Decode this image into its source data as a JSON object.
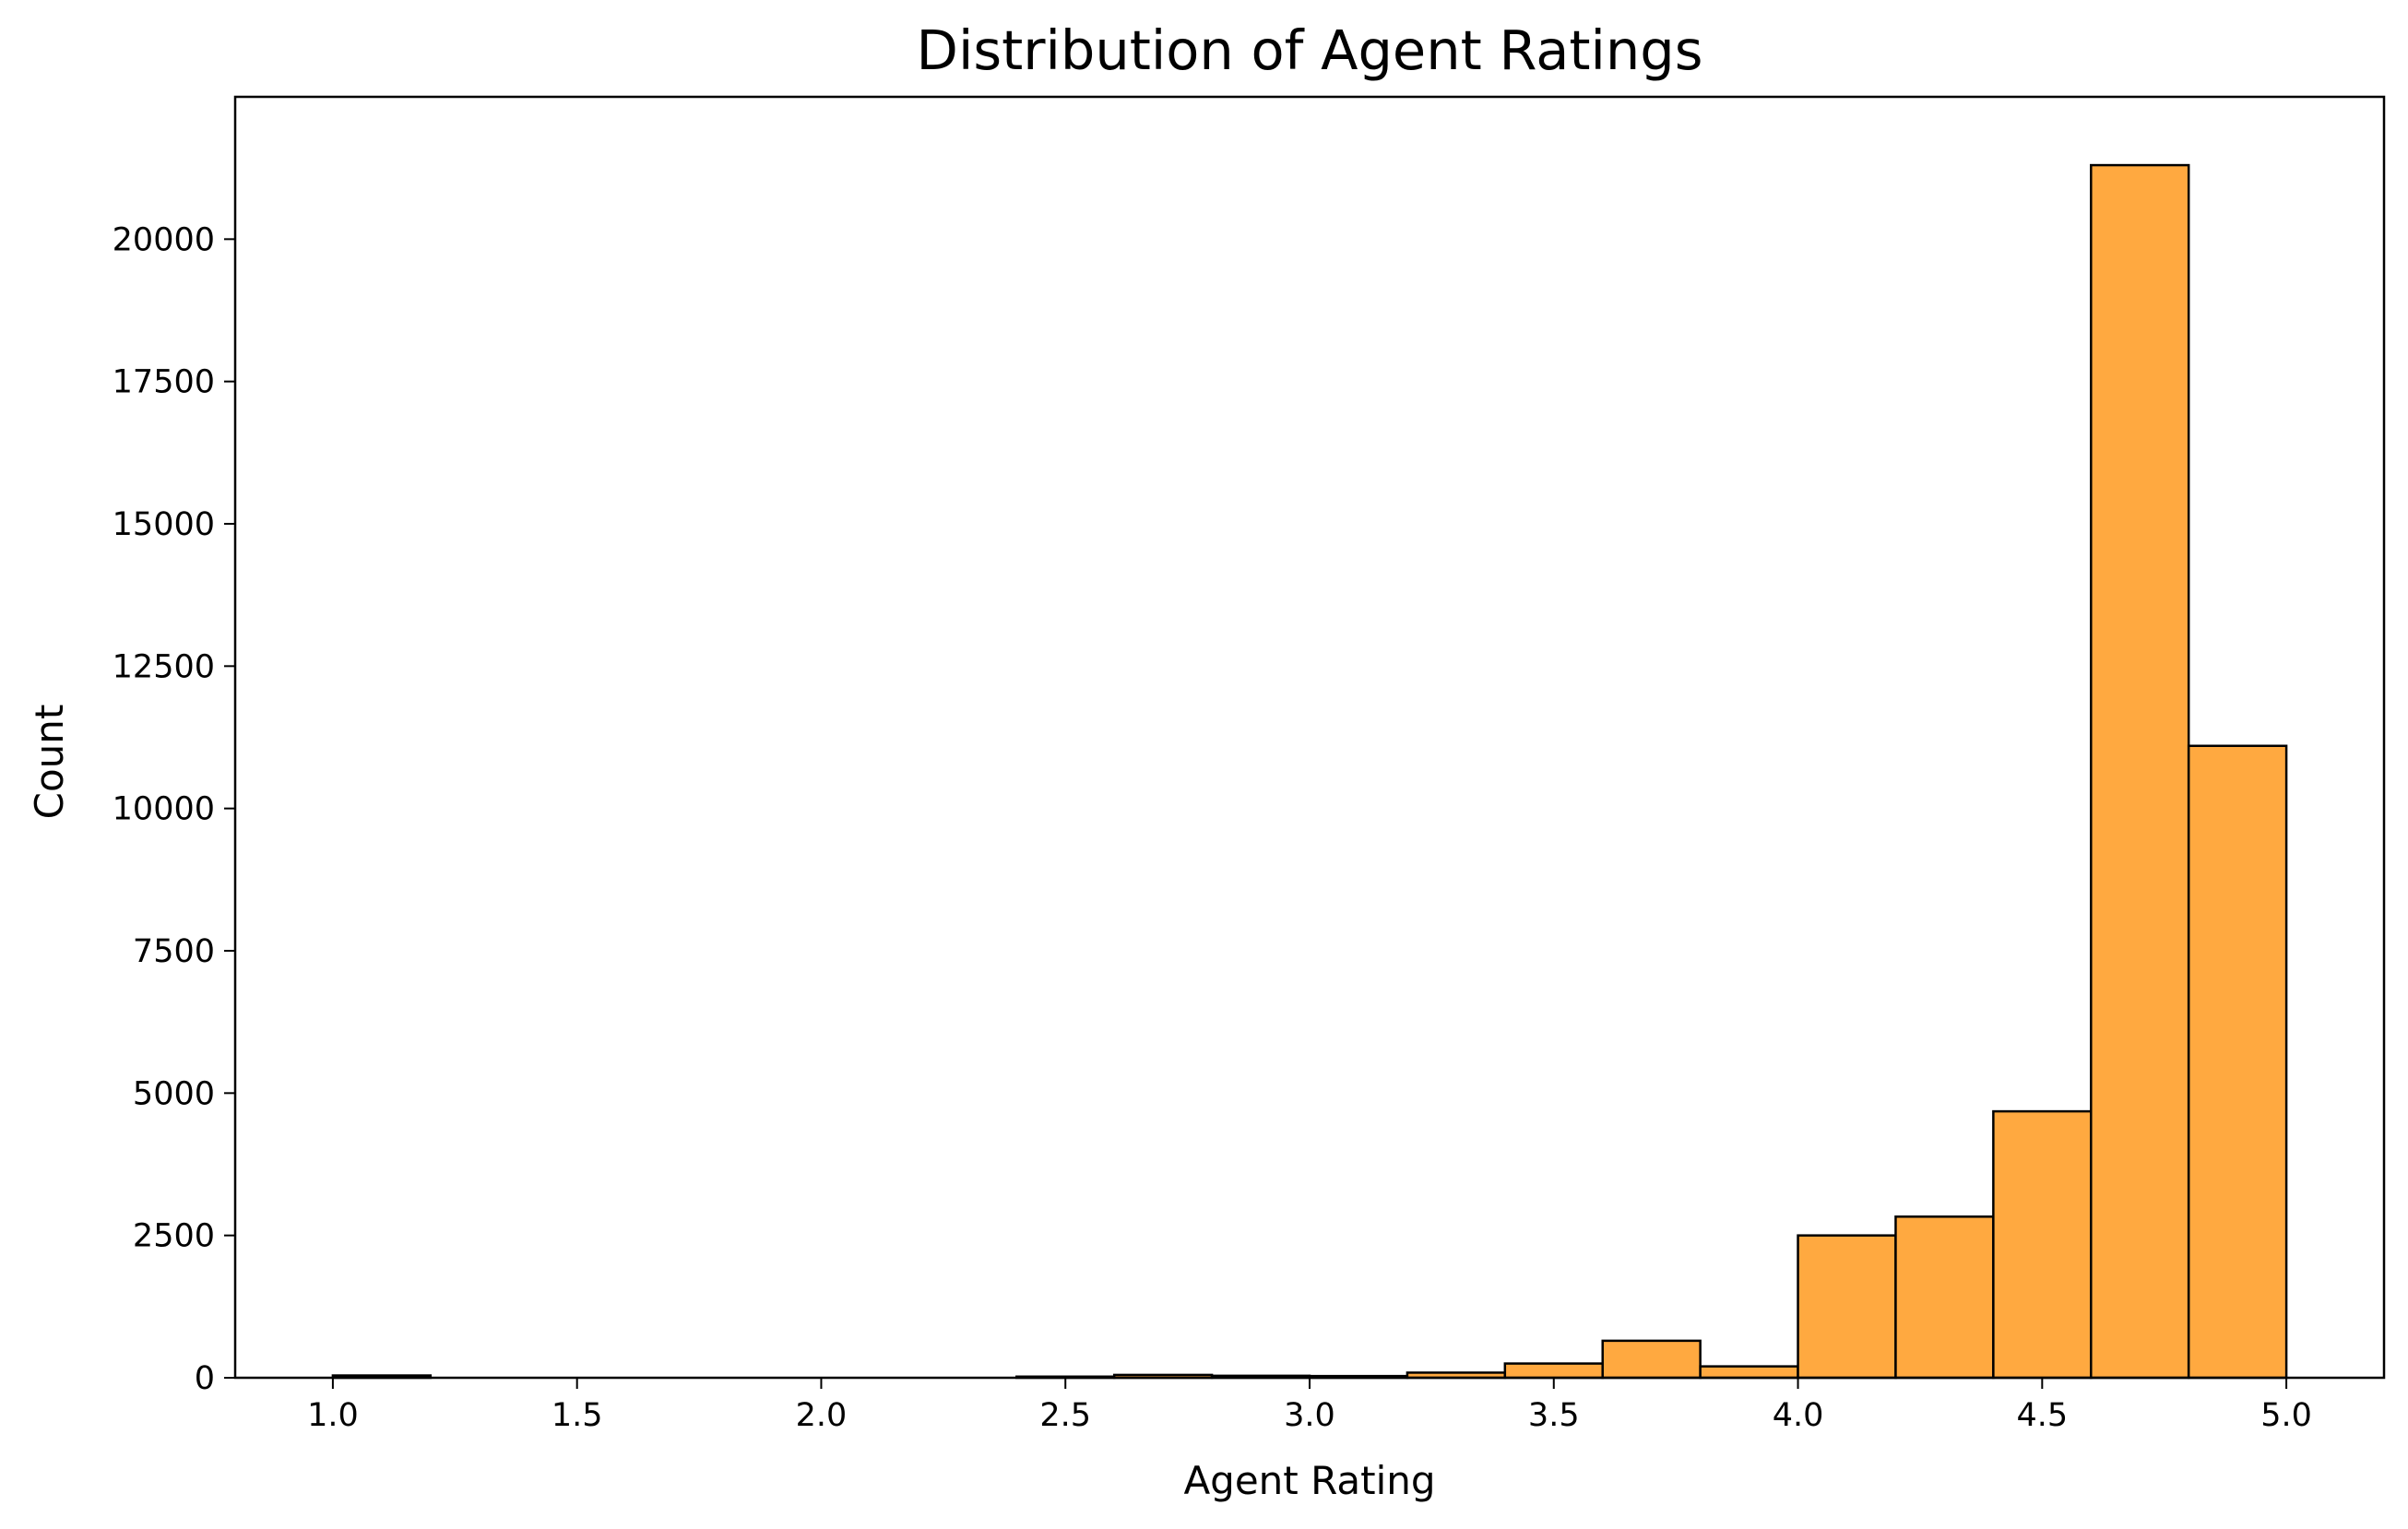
{
  "chart_data": {
    "type": "bar",
    "title": "Distribution of Agent Ratings",
    "xlabel": "Agent Rating",
    "ylabel": "Count",
    "xlim": [
      0.8,
      5.2
    ],
    "ylim": [
      0,
      22500
    ],
    "x_ticks": [
      1.0,
      1.5,
      2.0,
      2.5,
      3.0,
      3.5,
      4.0,
      4.5,
      5.0
    ],
    "x_tick_labels": [
      "1.0",
      "1.5",
      "2.0",
      "2.5",
      "3.0",
      "3.5",
      "4.0",
      "4.5",
      "5.0"
    ],
    "y_ticks": [
      0,
      2500,
      5000,
      7500,
      10000,
      12500,
      15000,
      17500,
      20000
    ],
    "y_tick_labels": [
      "0",
      "2500",
      "5000",
      "7500",
      "10000",
      "12500",
      "15000",
      "17500",
      "20000"
    ],
    "grid": false,
    "legend": false,
    "bar_color": "#ffa940",
    "edge_color": "#000000",
    "bins": [
      {
        "x0": 1.0,
        "x1": 1.2,
        "count": 40
      },
      {
        "x0": 1.2,
        "x1": 1.4,
        "count": 0
      },
      {
        "x0": 1.4,
        "x1": 1.6,
        "count": 0
      },
      {
        "x0": 1.6,
        "x1": 1.8,
        "count": 0
      },
      {
        "x0": 1.8,
        "x1": 2.0,
        "count": 0
      },
      {
        "x0": 2.0,
        "x1": 2.2,
        "count": 0
      },
      {
        "x0": 2.2,
        "x1": 2.4,
        "count": 0
      },
      {
        "x0": 2.4,
        "x1": 2.6,
        "count": 20
      },
      {
        "x0": 2.6,
        "x1": 2.8,
        "count": 50
      },
      {
        "x0": 2.8,
        "x1": 3.0,
        "count": 35
      },
      {
        "x0": 3.0,
        "x1": 3.2,
        "count": 30
      },
      {
        "x0": 3.2,
        "x1": 3.4,
        "count": 90
      },
      {
        "x0": 3.4,
        "x1": 3.6,
        "count": 250
      },
      {
        "x0": 3.6,
        "x1": 3.8,
        "count": 650
      },
      {
        "x0": 3.8,
        "x1": 4.0,
        "count": 200
      },
      {
        "x0": 4.0,
        "x1": 4.2,
        "count": 2500
      },
      {
        "x0": 4.2,
        "x1": 4.4,
        "count": 2830
      },
      {
        "x0": 4.4,
        "x1": 4.6,
        "count": 4680
      },
      {
        "x0": 4.6,
        "x1": 4.8,
        "count": 21300
      },
      {
        "x0": 4.8,
        "x1": 5.0,
        "count": 11100
      }
    ]
  }
}
